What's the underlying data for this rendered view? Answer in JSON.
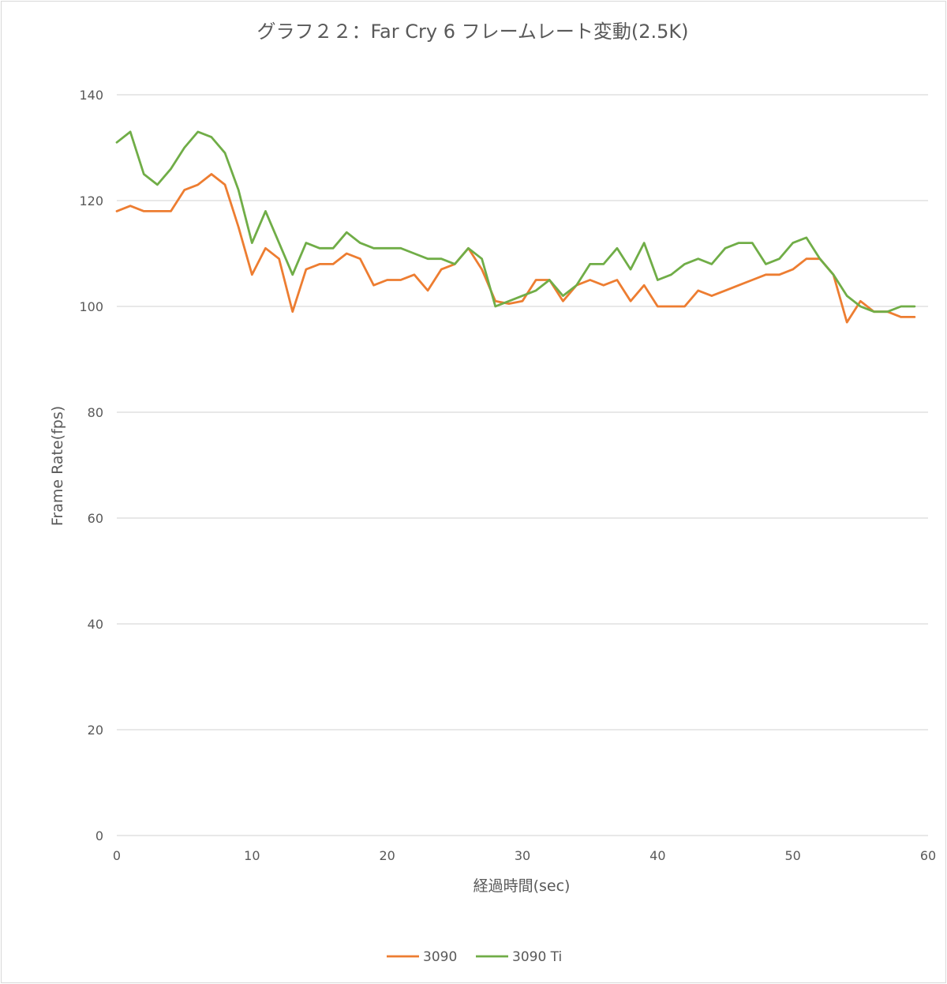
{
  "chart_data": {
    "type": "line",
    "title": "グラフ２２：Far Cry 6 フレームレート変動(2.5K)",
    "xlabel": "経過時間(sec)",
    "ylabel": "Frame Rate(fps)",
    "xlim": [
      0,
      60
    ],
    "ylim": [
      0,
      140
    ],
    "xticks": [
      0,
      10,
      20,
      30,
      40,
      50,
      60
    ],
    "yticks": [
      0,
      20,
      40,
      60,
      80,
      100,
      120,
      140
    ],
    "grid": "horizontal",
    "legend": "bottom",
    "x": [
      0,
      1,
      2,
      3,
      4,
      5,
      6,
      7,
      8,
      9,
      10,
      11,
      12,
      13,
      14,
      15,
      16,
      17,
      18,
      19,
      20,
      21,
      22,
      23,
      24,
      25,
      26,
      27,
      28,
      29,
      30,
      31,
      32,
      33,
      34,
      35,
      36,
      37,
      38,
      39,
      40,
      41,
      42,
      43,
      44,
      45,
      46,
      47,
      48,
      49,
      50,
      51,
      52,
      53,
      54,
      55,
      56,
      57,
      58,
      59
    ],
    "series": [
      {
        "name": "3090",
        "color": "#ed7d31",
        "values": [
          118,
          119,
          118,
          118,
          118,
          122,
          123,
          125,
          123,
          115,
          106,
          111,
          109,
          99,
          107,
          108,
          108,
          110,
          109,
          104,
          105,
          105,
          106,
          103,
          107,
          108,
          111,
          107,
          101,
          100.5,
          101,
          105,
          105,
          101,
          104,
          105,
          104,
          105,
          101,
          104,
          100,
          100,
          100,
          103,
          102,
          103,
          104,
          105,
          106,
          106,
          107,
          109,
          109,
          106,
          97,
          101,
          99,
          99,
          98,
          98
        ]
      },
      {
        "name": "3090 Ti",
        "color": "#70ad47",
        "values": [
          131,
          133,
          125,
          123,
          126,
          130,
          133,
          132,
          129,
          122,
          112,
          118,
          112,
          106,
          112,
          111,
          111,
          114,
          112,
          111,
          111,
          111,
          110,
          109,
          109,
          108,
          111,
          109,
          100,
          101,
          102,
          103,
          105,
          102,
          104,
          108,
          108,
          111,
          107,
          112,
          105,
          106,
          108,
          109,
          108,
          111,
          112,
          112,
          108,
          109,
          112,
          113,
          109,
          106,
          102,
          100,
          99,
          99,
          100,
          100
        ]
      }
    ]
  }
}
